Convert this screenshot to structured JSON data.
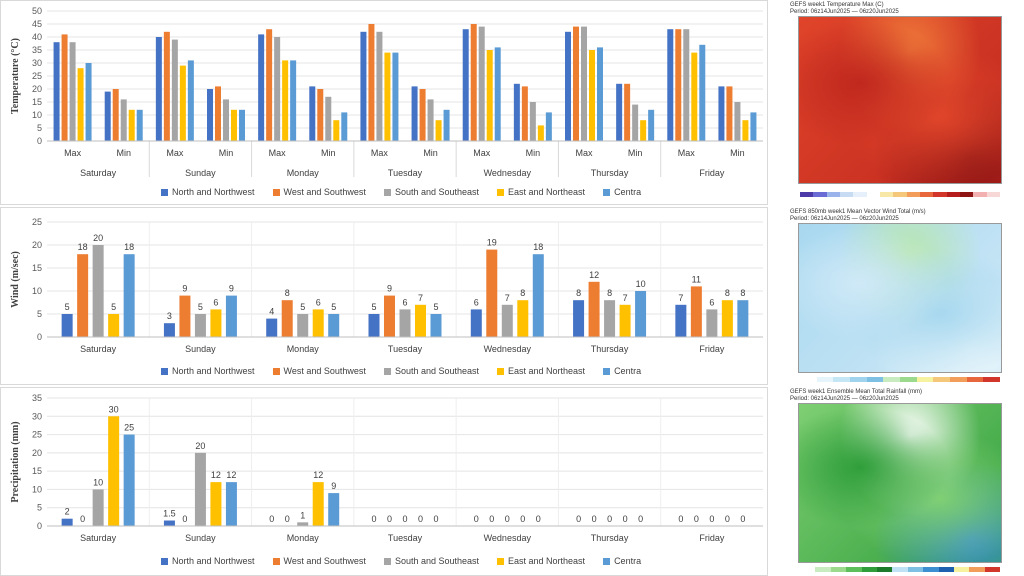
{
  "legend": [
    "North and Northwest",
    "West and Southwest",
    "South and Southeast",
    "East and Northeast",
    "Centra"
  ],
  "colors": [
    "#4472c4",
    "#ed7d31",
    "#a5a5a5",
    "#ffc000",
    "#5b9bd5"
  ],
  "chart_data": [
    {
      "type": "bar",
      "ylabel": "Temperature (°C)",
      "ylim": [
        0,
        50
      ],
      "yticks": [
        0,
        5,
        10,
        15,
        20,
        25,
        30,
        35,
        40,
        45,
        50
      ],
      "days": [
        "Saturday",
        "Sunday",
        "Monday",
        "Tuesday",
        "Wednesday",
        "Thursday",
        "Friday"
      ],
      "sub_categories": [
        "Max",
        "Min"
      ],
      "grid": true,
      "legend_position": "bottom",
      "series": [
        {
          "name": "North and Northwest",
          "values": [
            38,
            19,
            40,
            20,
            41,
            21,
            42,
            21,
            43,
            22,
            42,
            22,
            43,
            21
          ]
        },
        {
          "name": "West and Southwest",
          "values": [
            41,
            20,
            42,
            21,
            43,
            20,
            45,
            20,
            45,
            21,
            44,
            22,
            43,
            21
          ]
        },
        {
          "name": "South and Southeast",
          "values": [
            38,
            16,
            39,
            16,
            40,
            17,
            42,
            16,
            44,
            15,
            44,
            14,
            43,
            15
          ]
        },
        {
          "name": "East and Northeast",
          "values": [
            28,
            12,
            29,
            12,
            31,
            8,
            34,
            8,
            35,
            6,
            35,
            8,
            34,
            8
          ]
        },
        {
          "name": "Centra",
          "values": [
            30,
            12,
            31,
            12,
            31,
            11,
            34,
            12,
            36,
            11,
            36,
            12,
            37,
            11
          ]
        }
      ]
    },
    {
      "type": "bar",
      "ylabel": "Wind (m/sec)",
      "ylim": [
        0,
        25
      ],
      "yticks": [
        0,
        5,
        10,
        15,
        20,
        25
      ],
      "categories": [
        "Saturday",
        "Sunday",
        "Monday",
        "Tuesday",
        "Wednesday",
        "Thursday",
        "Friday"
      ],
      "grid": true,
      "legend_position": "bottom",
      "series": [
        {
          "name": "North and Northwest",
          "values": [
            5,
            3,
            4,
            5,
            6,
            8,
            7
          ],
          "labels": [
            "5",
            "3",
            "4",
            "5",
            "6",
            "8",
            "7"
          ]
        },
        {
          "name": "West and Southwest",
          "values": [
            18,
            9,
            8,
            9,
            19,
            12,
            11
          ],
          "labels": [
            "18",
            "9",
            "8",
            "9",
            "19",
            "12",
            "11"
          ]
        },
        {
          "name": "South and Southeast",
          "values": [
            20,
            5,
            5,
            6,
            7,
            8,
            6
          ],
          "labels": [
            "20",
            "5",
            "5",
            "6",
            "7",
            "8",
            "6"
          ]
        },
        {
          "name": "East and Northeast",
          "values": [
            5,
            6,
            6,
            7,
            8,
            7,
            8
          ],
          "labels": [
            "5",
            "6",
            "6",
            "7",
            "8",
            "7",
            "8"
          ]
        },
        {
          "name": "Centra",
          "values": [
            18,
            9,
            5,
            5,
            18,
            10,
            8
          ],
          "labels": [
            "18",
            "9",
            "5",
            "5",
            "18",
            "10",
            "8"
          ]
        }
      ]
    },
    {
      "type": "bar",
      "ylabel": "Precipitation (mm)",
      "ylim": [
        0,
        35
      ],
      "yticks": [
        0,
        5,
        10,
        15,
        20,
        25,
        30,
        35
      ],
      "categories": [
        "Saturday",
        "Sunday",
        "Monday",
        "Tuesday",
        "Wednesday",
        "Thursday",
        "Friday"
      ],
      "grid": true,
      "legend_position": "bottom",
      "series": [
        {
          "name": "North and Northwest",
          "values": [
            2,
            1.5,
            0,
            0,
            0,
            0,
            0
          ],
          "labels": [
            "2",
            "1.5",
            "0",
            "0",
            "0",
            "0",
            "0"
          ]
        },
        {
          "name": "West and Southwest",
          "values": [
            0,
            0,
            0,
            0,
            0,
            0,
            0
          ],
          "labels": [
            "0",
            "0",
            "0",
            "0",
            "0",
            "0",
            "0"
          ]
        },
        {
          "name": "South and Southeast",
          "values": [
            10,
            20,
            1,
            0,
            0,
            0,
            0
          ],
          "labels": [
            "10",
            "20",
            "1",
            "0",
            "0",
            "0",
            "0"
          ]
        },
        {
          "name": "East and Northeast",
          "values": [
            30,
            12,
            12,
            0,
            0,
            0,
            0
          ],
          "labels": [
            "30",
            "12",
            "12",
            "0",
            "0",
            "0",
            "0"
          ]
        },
        {
          "name": "Centra",
          "values": [
            25,
            12,
            9,
            0,
            0,
            0,
            0
          ],
          "labels": [
            "25",
            "12",
            "9",
            "0",
            "0",
            "0",
            "0"
          ]
        }
      ]
    }
  ],
  "maps": [
    {
      "title": "GEFS week1 Temperature Max (C)",
      "period": "Period: 06z14Jun2025 — 06z20Jun2025",
      "colorbar": [
        "#4b3aa8",
        "#6b6bd6",
        "#9ab3ea",
        "#c7dcf2",
        "#e6f0fa",
        "#ffffff",
        "#f7e8a8",
        "#f5c77a",
        "#f29e5a",
        "#e8663c",
        "#d2352a",
        "#b51d1d",
        "#8e1414",
        "#f2b0b0",
        "#f8d7d7"
      ],
      "dominant_colors": [
        "#c0281e",
        "#e0452a",
        "#f07a3a",
        "#8a1414",
        "#f4b6b6"
      ]
    },
    {
      "title": "GEFS 850mb week1 Mean Vector Wind Total (m/s)",
      "period": "Period: 06z14Jun2025 — 06z20Jun2025",
      "colorbar": [
        "#ffffff",
        "#e6f4fb",
        "#c5e6f5",
        "#9fd3ee",
        "#7ec0e4",
        "#c8ecc0",
        "#9bd98c",
        "#f7f2a0",
        "#f5c77a",
        "#f29e5a",
        "#e8663c",
        "#d2352a"
      ],
      "dominant_colors": [
        "#cfe9f7",
        "#a8d8ef",
        "#b9e7b0",
        "#e9f6fb"
      ]
    },
    {
      "title": "GEFS week1 Ensemble Mean Total Rainfall (mm)",
      "period": "Period: 06z14Jun2025 — 06z20Jun2025",
      "colorbar": [
        "#ffffff",
        "#c8ecc0",
        "#9bd98c",
        "#5cbf5a",
        "#2f9e3a",
        "#1c7a2b",
        "#bfe3f5",
        "#7ec0e4",
        "#3c8fd0",
        "#1f5fb0",
        "#f7f2a0",
        "#f29e5a",
        "#d2352a"
      ],
      "dominant_colors": [
        "#2f9e3a",
        "#7fcf74",
        "#ffffff",
        "#3c8fd0"
      ]
    }
  ]
}
